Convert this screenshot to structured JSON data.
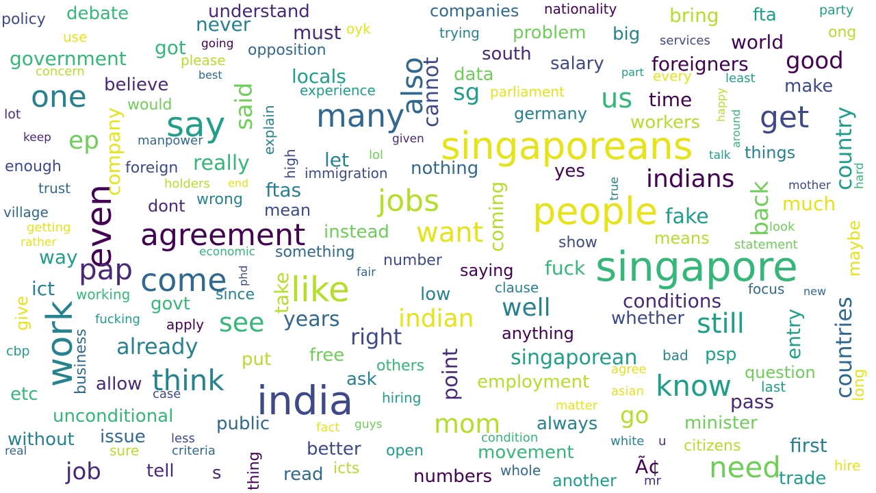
{
  "words": {
    "singaporeans": "singaporeans",
    "singapore": "singapore",
    "people": "people",
    "india": "india",
    "even": "even",
    "work": "work",
    "like": "like",
    "say": "say",
    "many": "many",
    "come": "come",
    "agreement": "agreement",
    "jobs": "jobs",
    "pap": "pap",
    "one": "one",
    "think": "think",
    "get": "get",
    "also": "also",
    "know": "know",
    "need": "need",
    "want": "want",
    "still": "still",
    "us": "us",
    "indians": "indians",
    "see": "see",
    "mom": "mom",
    "indian": "indian",
    "well": "well",
    "said": "said",
    "back": "back",
    "country": "country",
    "countries": "countries",
    "go": "go",
    "good": "good",
    "already": "already",
    "cannot": "cannot",
    "singaporean": "singaporean",
    "point": "point",
    "coming": "coming",
    "right": "right",
    "years": "years",
    "job": "job",
    "ep": "ep",
    "sg": "sg",
    "company": "company",
    "conditions": "conditions",
    "fake": "fake",
    "take": "take",
    "entry": "entry",
    "really": "really",
    "foreigners": "foreigners",
    "government": "government",
    "ftas": "ftas",
    "locals": "locals",
    "fuck": "fuck",
    "much": "much",
    "time": "time",
    "whether": "whether",
    "unconditional": "unconditional",
    "debate": "debate",
    "understand": "understand",
    "problem": "problem",
    "got": "got",
    "bring": "bring",
    "fta": "fta",
    "must": "must",
    "south": "south",
    "believe": "believe",
    "make": "make",
    "world": "world",
    "salary": "salary",
    "pass": "pass",
    "minister": "minister",
    "movement": "movement",
    "trade": "trade",
    "first": "first",
    "numbers": "numbers",
    "public": "public",
    "issue": "issue",
    "tell": "tell",
    "s": "s",
    "read": "read",
    "better": "better",
    "always": "always",
    "employment": "employment",
    "free": "free",
    "put": "put",
    "ask": "ask",
    "allow": "allow",
    "way": "way",
    "ict": "ict",
    "govt": "govt",
    "yes": "yes",
    "let": "let",
    "nothing": "nothing",
    "data": "data",
    "workers": "workers",
    "germany": "germany",
    "means": "means",
    "instead": "instead",
    "anything": "anything",
    "saying": "saying",
    "low": "low",
    "psp": "psp",
    "question": "question",
    "maybe": "maybe",
    "give": "give",
    "etc": "etc",
    "without": "without",
    "business": "business",
    "never": "never",
    "opposition": "opposition",
    "companies": "companies",
    "big": "big",
    "parliament": "parliament",
    "experience": "experience",
    "nationality": "nationality",
    "party": "party",
    "ong": "ong",
    "services": "services",
    "policy": "policy",
    "use": "use",
    "concern": "concern",
    "please": "please",
    "going": "going",
    "best": "best",
    "oyk": "oyk",
    "trying": "trying",
    "would": "would",
    "lot": "lot",
    "keep": "keep",
    "manpower": "manpower",
    "explain": "explain",
    "high": "high",
    "foreign": "foreign",
    "enough": "enough",
    "immigration": "immigration",
    "lol": "lol",
    "given": "given",
    "trust": "trust",
    "holders": "holders",
    "end": "end",
    "dont": "dont",
    "wrong": "wrong",
    "mean": "mean",
    "village": "village",
    "getting": "getting",
    "rather": "rather",
    "economic": "economic",
    "something": "something",
    "number": "number",
    "phd": "phd",
    "fair": "fair",
    "since": "since",
    "working": "working",
    "fucking": "fucking",
    "apply": "apply",
    "cbp": "cbp",
    "others": "others",
    "case": "case",
    "hiring": "hiring",
    "unconditional2": "unconditional",
    "less": "less",
    "criteria": "criteria",
    "real": "real",
    "sure": "sure",
    "thing": "thing",
    "fact": "fact",
    "guys": "guys",
    "open": "open",
    "icts": "icts",
    "condition": "condition",
    "whole": "whole",
    "another": "another",
    "white": "white",
    "u": "u",
    "mr": "mr",
    "garbled": "Ã¢",
    "citizens": "citizens",
    "hire": "hire",
    "long": "long",
    "last": "last",
    "agree": "agree",
    "asian": "asian",
    "matter": "matter",
    "bad": "bad",
    "statement": "statement",
    "look": "look",
    "show": "show",
    "clause": "clause",
    "focus": "focus",
    "new": "new",
    "mother": "mother",
    "hard": "hard",
    "talk": "talk",
    "true": "true",
    "around": "around",
    "happy": "happy",
    "least": "least",
    "every": "every",
    "part": "part",
    "things": "things"
  }
}
